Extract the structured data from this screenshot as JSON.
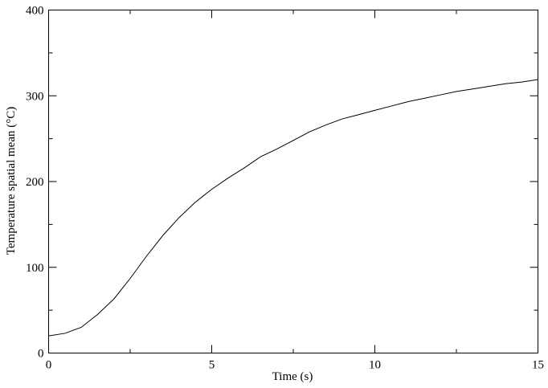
{
  "chart_data": {
    "type": "line",
    "xlabel": "Time (s)",
    "ylabel": "Temperature spatial mean (°C)",
    "x": [
      0,
      0.5,
      1,
      1.5,
      2,
      2.5,
      3,
      3.5,
      4,
      4.5,
      5,
      5.5,
      6,
      6.5,
      7,
      7.5,
      8,
      8.5,
      9,
      9.5,
      10,
      10.5,
      11,
      11.5,
      12,
      12.5,
      13,
      13.5,
      14,
      14.5,
      15
    ],
    "series": [
      {
        "color": "#000000",
        "values": [
          20,
          23,
          30,
          45,
          63,
          87,
          113,
          137,
          158,
          176,
          191,
          204,
          216,
          229,
          238,
          248,
          258,
          266,
          273,
          278,
          283,
          288,
          293,
          297,
          301,
          305,
          308,
          311,
          314,
          316,
          319
        ]
      }
    ],
    "xlim": [
      0,
      15
    ],
    "ylim": [
      0,
      400
    ],
    "xticks": [
      0,
      5,
      10,
      15
    ],
    "yticks": [
      0,
      100,
      200,
      300,
      400
    ],
    "xminorticks": [
      2.5,
      7.5,
      12.5
    ],
    "yminorticks": [
      50,
      150,
      250,
      350
    ],
    "grid": false
  }
}
